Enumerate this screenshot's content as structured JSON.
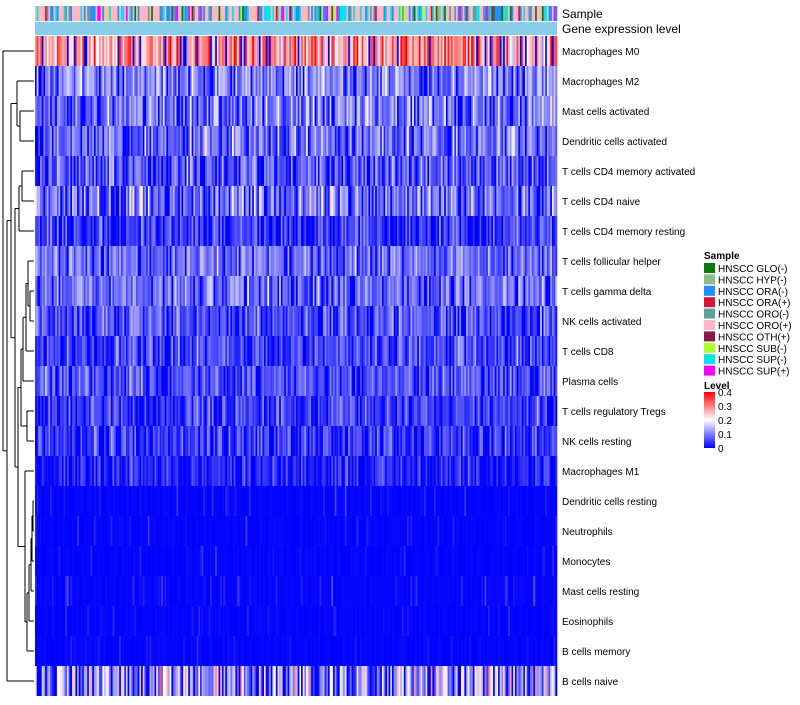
{
  "chart_data": {
    "type": "heatmap",
    "title": "",
    "annotation_labels": [
      "Sample",
      "Gene expression level"
    ],
    "rows": [
      {
        "label": "Macrophages M0",
        "mean": 0.28,
        "spread": 0.1
      },
      {
        "label": "Macrophages M2",
        "mean": 0.11,
        "spread": 0.06
      },
      {
        "label": "Mast cells activated",
        "mean": 0.1,
        "spread": 0.07
      },
      {
        "label": "Dendritic cells activated",
        "mean": 0.09,
        "spread": 0.07
      },
      {
        "label": "T cells CD4 memory activated",
        "mean": 0.07,
        "spread": 0.06
      },
      {
        "label": "T cells CD4 naive",
        "mean": 0.09,
        "spread": 0.08
      },
      {
        "label": "T cells CD4 memory resting",
        "mean": 0.05,
        "spread": 0.05
      },
      {
        "label": "T cells follicular helper",
        "mean": 0.09,
        "spread": 0.05
      },
      {
        "label": "T cells gamma delta",
        "mean": 0.09,
        "spread": 0.06
      },
      {
        "label": "NK cells activated",
        "mean": 0.07,
        "spread": 0.05
      },
      {
        "label": "T cells CD8",
        "mean": 0.06,
        "spread": 0.05
      },
      {
        "label": "Plasma cells",
        "mean": 0.07,
        "spread": 0.05
      },
      {
        "label": "T cells regulatory  Tregs",
        "mean": 0.05,
        "spread": 0.05
      },
      {
        "label": "NK cells resting",
        "mean": 0.05,
        "spread": 0.05
      },
      {
        "label": "Macrophages M1",
        "mean": 0.03,
        "spread": 0.04
      },
      {
        "label": "Dendritic cells resting",
        "mean": 0.01,
        "spread": 0.03
      },
      {
        "label": "Neutrophils",
        "mean": 0.01,
        "spread": 0.03
      },
      {
        "label": "Monocytes",
        "mean": 0.01,
        "spread": 0.03
      },
      {
        "label": "Mast cells resting",
        "mean": 0.02,
        "spread": 0.03
      },
      {
        "label": "Eosinophils",
        "mean": 0.01,
        "spread": 0.02
      },
      {
        "label": "B cells memory",
        "mean": 0.01,
        "spread": 0.02
      },
      {
        "label": "B cells naive",
        "mean": 0.12,
        "spread": 0.12
      }
    ],
    "n_samples": 310,
    "value_range": [
      0,
      0.4
    ],
    "legend_sample": {
      "title": "Sample",
      "entries": [
        {
          "label": "HNSCC GLO(-)",
          "color": "#0a7a0a"
        },
        {
          "label": "HNSCC HYP(-)",
          "color": "#8fbc8f"
        },
        {
          "label": "HNSCC ORA(-)",
          "color": "#1e90ff"
        },
        {
          "label": "HNSCC ORA(+)",
          "color": "#dc143c"
        },
        {
          "label": "HNSCC ORO(-)",
          "color": "#5f9ea0"
        },
        {
          "label": "HNSCC ORO(+)",
          "color": "#ffb6c1"
        },
        {
          "label": "HNSCC OTH(+)",
          "color": "#8b1a4a"
        },
        {
          "label": "HNSCC SUB(-)",
          "color": "#adff2f"
        },
        {
          "label": "HNSCC SUP(-)",
          "color": "#00e5ee"
        },
        {
          "label": "HNSCC SUP(+)",
          "color": "#ff00ff"
        }
      ],
      "weights": [
        0.05,
        0.03,
        0.16,
        0.04,
        0.08,
        0.42,
        0.02,
        0.02,
        0.14,
        0.04
      ]
    },
    "legend_level": {
      "title": "Level",
      "ticks": [
        "0.4",
        "0.3",
        "0.2",
        "0.1",
        "0"
      ],
      "tick_values": [
        0.4,
        0.3,
        0.2,
        0.1,
        0
      ]
    },
    "colors": {
      "low": "#0000ff",
      "mid": "#ffffff",
      "high": "#ff0000",
      "expression_bar": "#87ceeb",
      "dendrogram": "#000000"
    }
  }
}
